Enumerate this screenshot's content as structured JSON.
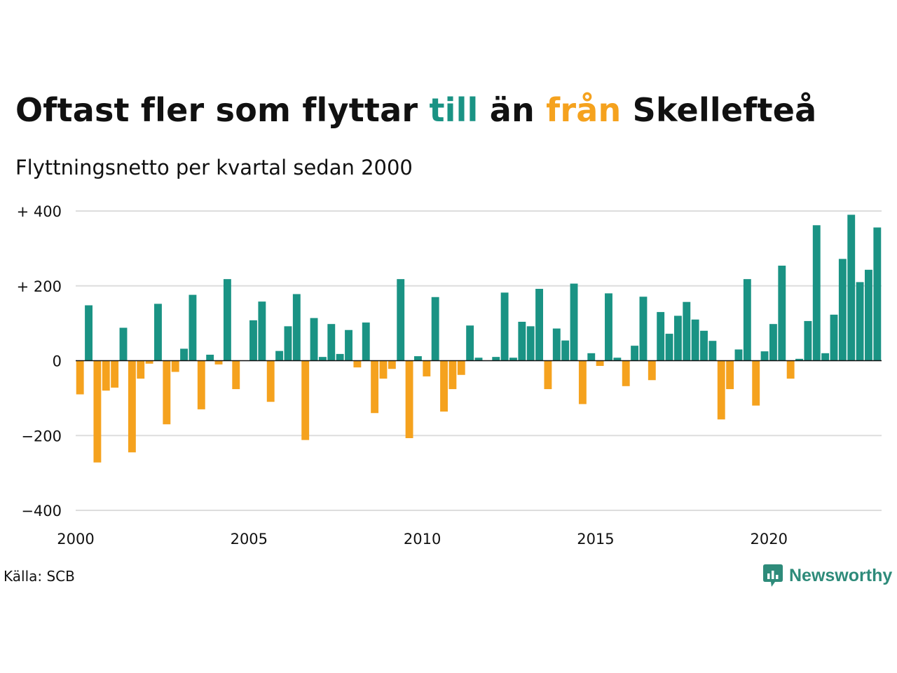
{
  "title": {
    "prefix": "Oftast fler som flyttar ",
    "word_in": "till",
    "middle": " än ",
    "word_out": "från",
    "suffix": " Skellefteå"
  },
  "subtitle": "Flyttningsnetto per kvartal sedan 2000",
  "source": "Källa: SCB",
  "brand": {
    "name": "Newsworthy",
    "icon": "newsworthy-logo-icon"
  },
  "colors": {
    "positive": "#1a9384",
    "negative": "#f5a21e",
    "grid": "#dddddd",
    "axis": "#111111"
  },
  "chart_data": {
    "type": "bar",
    "title": "Oftast fler som flyttar till än från Skellefteå",
    "subtitle": "Flyttningsnetto per kvartal sedan 2000",
    "x_start_year": 2000,
    "periods_per_year": 4,
    "xlim": [
      2000,
      2023.25
    ],
    "x_ticks": [
      2000,
      2005,
      2010,
      2015,
      2020
    ],
    "x_tick_labels": [
      "2000",
      "2005",
      "2010",
      "2015",
      "2020"
    ],
    "ylim": [
      -400,
      400
    ],
    "y_ticks": [
      400,
      200,
      0,
      -200,
      -400
    ],
    "y_tick_labels": [
      "+ 400",
      "+ 200",
      "0",
      "−200",
      "−400"
    ],
    "grid": true,
    "values": [
      -90,
      148,
      -272,
      -80,
      -72,
      88,
      -245,
      -48,
      -8,
      152,
      -170,
      -30,
      32,
      176,
      -130,
      16,
      -10,
      218,
      -76,
      0,
      108,
      158,
      -110,
      26,
      92,
      178,
      -212,
      114,
      10,
      98,
      18,
      82,
      -18,
      102,
      -140,
      -48,
      -22,
      218,
      -207,
      12,
      -42,
      170,
      -136,
      -76,
      -38,
      94,
      8,
      0,
      10,
      182,
      8,
      104,
      92,
      192,
      -76,
      86,
      54,
      206,
      -116,
      20,
      -14,
      180,
      8,
      -68,
      40,
      171,
      -52,
      130,
      72,
      120,
      157,
      110,
      80,
      53,
      -157,
      -76,
      30,
      218,
      -120,
      25,
      98,
      254,
      -48,
      5,
      106,
      362,
      20,
      123,
      272,
      390,
      210,
      243,
      356
    ]
  }
}
